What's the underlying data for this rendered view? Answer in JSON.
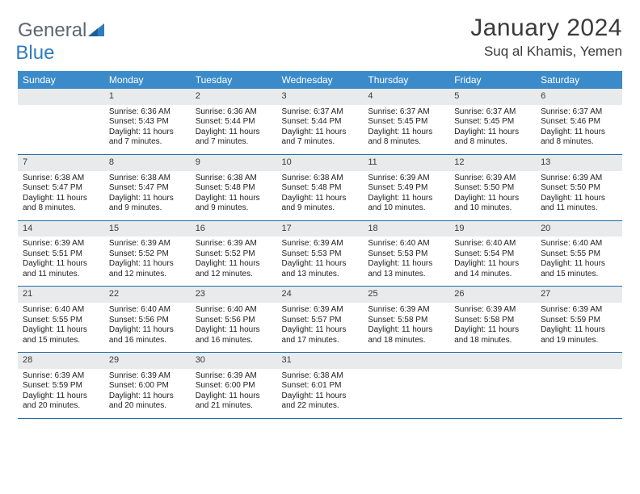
{
  "brand": {
    "part1": "General",
    "part2": "Blue"
  },
  "title": "January 2024",
  "location": "Suq al Khamis, Yemen",
  "colors": {
    "header_bg": "#3b8bca",
    "header_text": "#ffffff",
    "daynum_bg": "#e9eaeb",
    "row_border": "#1f6fa8",
    "brand_gray": "#5c6770",
    "brand_blue": "#2e7cc0"
  },
  "weekdays": [
    "Sunday",
    "Monday",
    "Tuesday",
    "Wednesday",
    "Thursday",
    "Friday",
    "Saturday"
  ],
  "weeks": [
    [
      null,
      {
        "n": "1",
        "sr": "Sunrise: 6:36 AM",
        "ss": "Sunset: 5:43 PM",
        "d1": "Daylight: 11 hours",
        "d2": "and 7 minutes."
      },
      {
        "n": "2",
        "sr": "Sunrise: 6:36 AM",
        "ss": "Sunset: 5:44 PM",
        "d1": "Daylight: 11 hours",
        "d2": "and 7 minutes."
      },
      {
        "n": "3",
        "sr": "Sunrise: 6:37 AM",
        "ss": "Sunset: 5:44 PM",
        "d1": "Daylight: 11 hours",
        "d2": "and 7 minutes."
      },
      {
        "n": "4",
        "sr": "Sunrise: 6:37 AM",
        "ss": "Sunset: 5:45 PM",
        "d1": "Daylight: 11 hours",
        "d2": "and 8 minutes."
      },
      {
        "n": "5",
        "sr": "Sunrise: 6:37 AM",
        "ss": "Sunset: 5:45 PM",
        "d1": "Daylight: 11 hours",
        "d2": "and 8 minutes."
      },
      {
        "n": "6",
        "sr": "Sunrise: 6:37 AM",
        "ss": "Sunset: 5:46 PM",
        "d1": "Daylight: 11 hours",
        "d2": "and 8 minutes."
      }
    ],
    [
      {
        "n": "7",
        "sr": "Sunrise: 6:38 AM",
        "ss": "Sunset: 5:47 PM",
        "d1": "Daylight: 11 hours",
        "d2": "and 8 minutes."
      },
      {
        "n": "8",
        "sr": "Sunrise: 6:38 AM",
        "ss": "Sunset: 5:47 PM",
        "d1": "Daylight: 11 hours",
        "d2": "and 9 minutes."
      },
      {
        "n": "9",
        "sr": "Sunrise: 6:38 AM",
        "ss": "Sunset: 5:48 PM",
        "d1": "Daylight: 11 hours",
        "d2": "and 9 minutes."
      },
      {
        "n": "10",
        "sr": "Sunrise: 6:38 AM",
        "ss": "Sunset: 5:48 PM",
        "d1": "Daylight: 11 hours",
        "d2": "and 9 minutes."
      },
      {
        "n": "11",
        "sr": "Sunrise: 6:39 AM",
        "ss": "Sunset: 5:49 PM",
        "d1": "Daylight: 11 hours",
        "d2": "and 10 minutes."
      },
      {
        "n": "12",
        "sr": "Sunrise: 6:39 AM",
        "ss": "Sunset: 5:50 PM",
        "d1": "Daylight: 11 hours",
        "d2": "and 10 minutes."
      },
      {
        "n": "13",
        "sr": "Sunrise: 6:39 AM",
        "ss": "Sunset: 5:50 PM",
        "d1": "Daylight: 11 hours",
        "d2": "and 11 minutes."
      }
    ],
    [
      {
        "n": "14",
        "sr": "Sunrise: 6:39 AM",
        "ss": "Sunset: 5:51 PM",
        "d1": "Daylight: 11 hours",
        "d2": "and 11 minutes."
      },
      {
        "n": "15",
        "sr": "Sunrise: 6:39 AM",
        "ss": "Sunset: 5:52 PM",
        "d1": "Daylight: 11 hours",
        "d2": "and 12 minutes."
      },
      {
        "n": "16",
        "sr": "Sunrise: 6:39 AM",
        "ss": "Sunset: 5:52 PM",
        "d1": "Daylight: 11 hours",
        "d2": "and 12 minutes."
      },
      {
        "n": "17",
        "sr": "Sunrise: 6:39 AM",
        "ss": "Sunset: 5:53 PM",
        "d1": "Daylight: 11 hours",
        "d2": "and 13 minutes."
      },
      {
        "n": "18",
        "sr": "Sunrise: 6:40 AM",
        "ss": "Sunset: 5:53 PM",
        "d1": "Daylight: 11 hours",
        "d2": "and 13 minutes."
      },
      {
        "n": "19",
        "sr": "Sunrise: 6:40 AM",
        "ss": "Sunset: 5:54 PM",
        "d1": "Daylight: 11 hours",
        "d2": "and 14 minutes."
      },
      {
        "n": "20",
        "sr": "Sunrise: 6:40 AM",
        "ss": "Sunset: 5:55 PM",
        "d1": "Daylight: 11 hours",
        "d2": "and 15 minutes."
      }
    ],
    [
      {
        "n": "21",
        "sr": "Sunrise: 6:40 AM",
        "ss": "Sunset: 5:55 PM",
        "d1": "Daylight: 11 hours",
        "d2": "and 15 minutes."
      },
      {
        "n": "22",
        "sr": "Sunrise: 6:40 AM",
        "ss": "Sunset: 5:56 PM",
        "d1": "Daylight: 11 hours",
        "d2": "and 16 minutes."
      },
      {
        "n": "23",
        "sr": "Sunrise: 6:40 AM",
        "ss": "Sunset: 5:56 PM",
        "d1": "Daylight: 11 hours",
        "d2": "and 16 minutes."
      },
      {
        "n": "24",
        "sr": "Sunrise: 6:39 AM",
        "ss": "Sunset: 5:57 PM",
        "d1": "Daylight: 11 hours",
        "d2": "and 17 minutes."
      },
      {
        "n": "25",
        "sr": "Sunrise: 6:39 AM",
        "ss": "Sunset: 5:58 PM",
        "d1": "Daylight: 11 hours",
        "d2": "and 18 minutes."
      },
      {
        "n": "26",
        "sr": "Sunrise: 6:39 AM",
        "ss": "Sunset: 5:58 PM",
        "d1": "Daylight: 11 hours",
        "d2": "and 18 minutes."
      },
      {
        "n": "27",
        "sr": "Sunrise: 6:39 AM",
        "ss": "Sunset: 5:59 PM",
        "d1": "Daylight: 11 hours",
        "d2": "and 19 minutes."
      }
    ],
    [
      {
        "n": "28",
        "sr": "Sunrise: 6:39 AM",
        "ss": "Sunset: 5:59 PM",
        "d1": "Daylight: 11 hours",
        "d2": "and 20 minutes."
      },
      {
        "n": "29",
        "sr": "Sunrise: 6:39 AM",
        "ss": "Sunset: 6:00 PM",
        "d1": "Daylight: 11 hours",
        "d2": "and 20 minutes."
      },
      {
        "n": "30",
        "sr": "Sunrise: 6:39 AM",
        "ss": "Sunset: 6:00 PM",
        "d1": "Daylight: 11 hours",
        "d2": "and 21 minutes."
      },
      {
        "n": "31",
        "sr": "Sunrise: 6:38 AM",
        "ss": "Sunset: 6:01 PM",
        "d1": "Daylight: 11 hours",
        "d2": "and 22 minutes."
      },
      null,
      null,
      null
    ]
  ]
}
